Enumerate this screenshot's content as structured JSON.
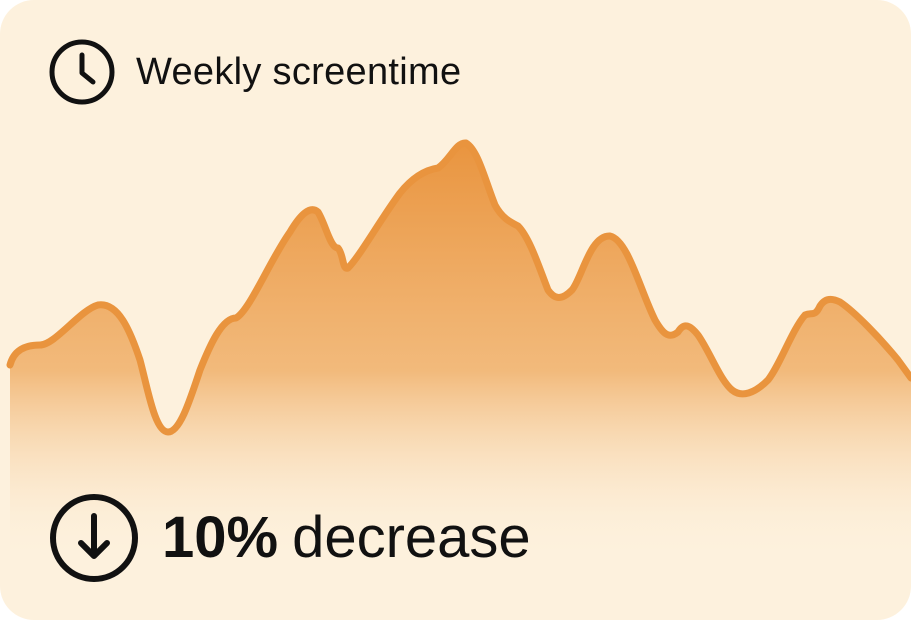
{
  "card": {
    "title": "Weekly screentime",
    "title_icon": "clock-icon",
    "stat": {
      "value": "10%",
      "label": "decrease",
      "icon": "arrow-down-circle-icon"
    }
  },
  "colors": {
    "background": "#fdf1dd",
    "line": "#e9943e",
    "text": "#111111"
  }
}
